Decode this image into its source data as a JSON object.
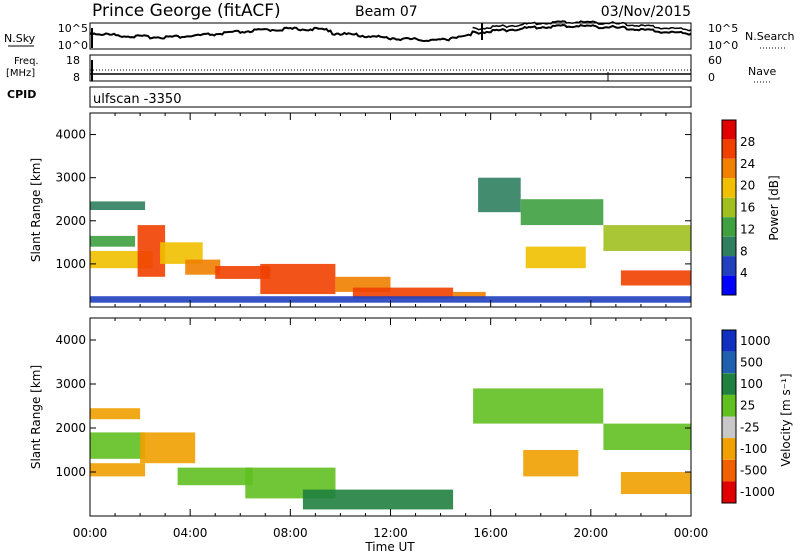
{
  "header": {
    "title": "Prince George (fitACF)",
    "beam": "Beam 07",
    "date": "03/Nov/2015"
  },
  "nsky_panel": {
    "left_label": "N.Sky",
    "left_ticks": [
      "10^5",
      "10^0"
    ],
    "right_ticks": [
      "10^5",
      "10^0"
    ],
    "right_label": "N.Search"
  },
  "freq_panel": {
    "left_label_top": "Freq.",
    "left_label_unit": "[MHz]",
    "left_ticks": [
      "18",
      "8"
    ],
    "right_ticks": [
      "60",
      "0"
    ],
    "right_label": "Nave",
    "cpid_label": "CPID",
    "cpid_value": "ulfscan -3350"
  },
  "colors": {
    "power_scale": [
      "#0000ff",
      "#2040c0",
      "#2f7f5f",
      "#3fa040",
      "#a0c020",
      "#f0c000",
      "#f08000",
      "#f04000",
      "#e00000"
    ],
    "velocity_scale": [
      "#1030c0",
      "#2060b0",
      "#208040",
      "#60c020",
      "#c8c8c8",
      "#f0a000",
      "#f06000",
      "#e00000"
    ]
  },
  "chart_data": [
    {
      "type": "heatmap",
      "name": "power",
      "ylabel": "Slant Range [km]",
      "ylim": [
        0,
        4500
      ],
      "yticks": [
        "1000",
        "2000",
        "3000",
        "4000"
      ],
      "xlabel": "",
      "x": [
        "00:00",
        "04:00",
        "08:00",
        "12:00",
        "16:00",
        "20:00",
        "00:00"
      ],
      "colorbar": {
        "label": "Power [dB]",
        "ticks": [
          "4",
          "8",
          "12",
          "16",
          "20",
          "24",
          "28"
        ],
        "range": [
          0,
          32
        ]
      },
      "bands": [
        {
          "t0": 0.0,
          "t1": 2.2,
          "r0": 2250,
          "r1": 2450,
          "v": 10
        },
        {
          "t0": 0.0,
          "t1": 1.8,
          "r0": 1400,
          "r1": 1650,
          "v": 12
        },
        {
          "t0": 0.0,
          "t1": 2.5,
          "r0": 900,
          "r1": 1300,
          "v": 20
        },
        {
          "t0": 1.9,
          "t1": 3.0,
          "r0": 700,
          "r1": 1900,
          "v": 26
        },
        {
          "t0": 2.8,
          "t1": 4.5,
          "r0": 1000,
          "r1": 1500,
          "v": 18
        },
        {
          "t0": 3.8,
          "t1": 5.2,
          "r0": 750,
          "r1": 1100,
          "v": 22
        },
        {
          "t0": 5.0,
          "t1": 7.2,
          "r0": 650,
          "r1": 950,
          "v": 26
        },
        {
          "t0": 6.8,
          "t1": 9.8,
          "r0": 300,
          "r1": 1000,
          "v": 27
        },
        {
          "t0": 9.8,
          "t1": 12.0,
          "r0": 350,
          "r1": 700,
          "v": 24
        },
        {
          "t0": 10.5,
          "t1": 14.5,
          "r0": 200,
          "r1": 450,
          "v": 27
        },
        {
          "t0": 14.5,
          "t1": 15.8,
          "r0": 200,
          "r1": 350,
          "v": 22
        },
        {
          "t0": 15.5,
          "t1": 17.2,
          "r0": 2200,
          "r1": 3000,
          "v": 10
        },
        {
          "t0": 17.2,
          "t1": 20.5,
          "r0": 1900,
          "r1": 2500,
          "v": 14
        },
        {
          "t0": 20.5,
          "t1": 24.0,
          "r0": 1300,
          "r1": 1900,
          "v": 16
        },
        {
          "t0": 17.4,
          "t1": 19.8,
          "r0": 900,
          "r1": 1400,
          "v": 20
        },
        {
          "t0": 21.2,
          "t1": 24.0,
          "r0": 500,
          "r1": 850,
          "v": 28
        },
        {
          "t0": 0.0,
          "t1": 24.0,
          "r0": 100,
          "r1": 250,
          "v": 6
        }
      ]
    },
    {
      "type": "heatmap",
      "name": "velocity",
      "ylabel": "Slant Range [km]",
      "ylim": [
        0,
        4500
      ],
      "yticks": [
        "1000",
        "2000",
        "3000",
        "4000"
      ],
      "xlabel": "Time UT",
      "x": [
        "00:00",
        "04:00",
        "08:00",
        "12:00",
        "16:00",
        "20:00",
        "00:00"
      ],
      "colorbar": {
        "label": "Velocity [m s⁻¹]",
        "ticks": [
          "1000",
          "500",
          "100",
          "25",
          "-25",
          "-100",
          "-500",
          "-1000"
        ]
      },
      "bands": [
        {
          "t0": 0.0,
          "t1": 2.0,
          "r0": 2200,
          "r1": 2450,
          "v": -150
        },
        {
          "t0": 0.0,
          "t1": 2.2,
          "r0": 1300,
          "r1": 1900,
          "v": 0
        },
        {
          "t0": 0.0,
          "t1": 2.2,
          "r0": 900,
          "r1": 1200,
          "v": -200
        },
        {
          "t0": 2.0,
          "t1": 4.2,
          "r0": 1200,
          "r1": 1900,
          "v": -250
        },
        {
          "t0": 3.5,
          "t1": 6.5,
          "r0": 700,
          "r1": 1100,
          "v": 0
        },
        {
          "t0": 6.2,
          "t1": 9.8,
          "r0": 400,
          "r1": 1100,
          "v": 0
        },
        {
          "t0": 8.5,
          "t1": 14.5,
          "r0": 150,
          "r1": 600,
          "v": 80
        },
        {
          "t0": 15.3,
          "t1": 20.5,
          "r0": 2100,
          "r1": 2900,
          "v": 0
        },
        {
          "t0": 20.5,
          "t1": 24.0,
          "r0": 1500,
          "r1": 2100,
          "v": 0
        },
        {
          "t0": 17.3,
          "t1": 19.5,
          "r0": 900,
          "r1": 1500,
          "v": -200
        },
        {
          "t0": 21.2,
          "t1": 24.0,
          "r0": 500,
          "r1": 1000,
          "v": -180
        }
      ]
    }
  ]
}
